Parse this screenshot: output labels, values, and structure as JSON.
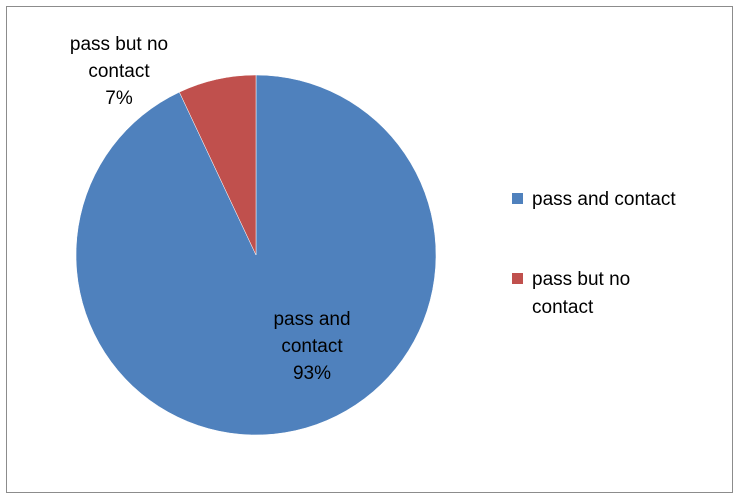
{
  "chart_data": {
    "type": "pie",
    "title": "",
    "slices": [
      {
        "label": "pass and contact",
        "value": 93,
        "percent_label": "93%",
        "color": "#4F81BD"
      },
      {
        "label": "pass but no contact",
        "value": 7,
        "percent_label": "7%",
        "color": "#C0504D"
      }
    ],
    "legend": {
      "position": "right",
      "entries": [
        "pass and contact",
        "pass but no contact"
      ]
    },
    "data_labels": {
      "show_category": true,
      "show_percent": true
    }
  }
}
